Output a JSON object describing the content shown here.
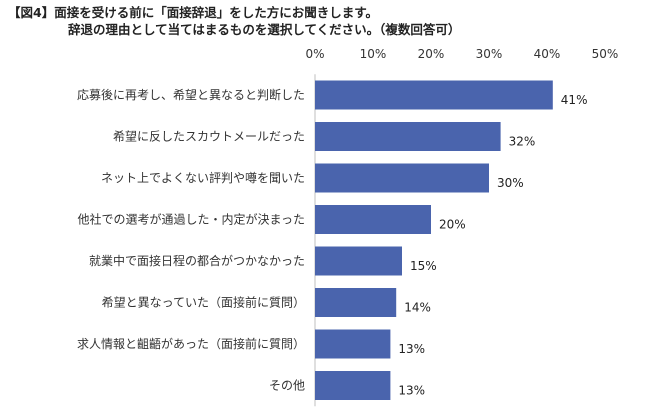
{
  "header": {
    "title_line1": "【図4】面接を受ける前に「面接辞退」をした方にお聞きします。",
    "title_line2": "辞退の理由として当てはまるものを選択してください。（複数回答可）"
  },
  "chart_data": {
    "type": "bar",
    "orientation": "horizontal",
    "categories": [
      "応募後に再考し、希望と異なると判断した",
      "希望に反したスカウトメールだった",
      "ネット上でよくない評判や噂を聞いた",
      "他社での選考が通過した・内定が決まった",
      "就業中で面接日程の都合がつかなかった",
      "希望と異なっていた（面接前に質問）",
      "求人情報と齟齬があった（面接前に質問）",
      "その他"
    ],
    "values": [
      41,
      32,
      30,
      20,
      15,
      14,
      13,
      13
    ],
    "data_labels": [
      "41%",
      "32%",
      "30%",
      "20%",
      "15%",
      "14%",
      "13%",
      "13%"
    ],
    "xlim": [
      0,
      50
    ],
    "xticks": [
      0,
      10,
      20,
      30,
      40,
      50
    ],
    "xtick_labels": [
      "0%",
      "10%",
      "20%",
      "30%",
      "40%",
      "50%"
    ],
    "axis_position": "top",
    "grid": false,
    "bar_color": "#4a64ad"
  }
}
